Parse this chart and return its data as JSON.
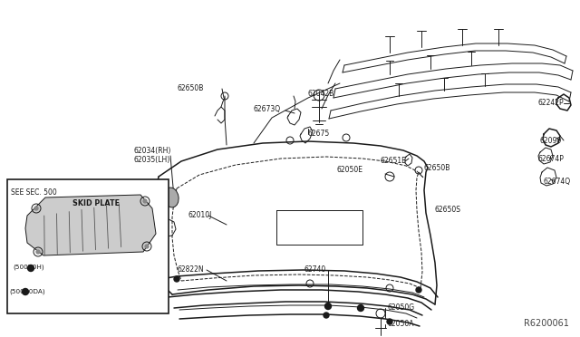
{
  "bg_color": "#ffffff",
  "line_color": "#1a1a1a",
  "label_color": "#1a1a1a",
  "ref_color": "#444444",
  "fig_width": 6.4,
  "fig_height": 3.72,
  "dpi": 100,
  "diagram_ref": "R6200061",
  "inset_label": "SEE SEC. 500",
  "inset_part": "SKID PLATE"
}
